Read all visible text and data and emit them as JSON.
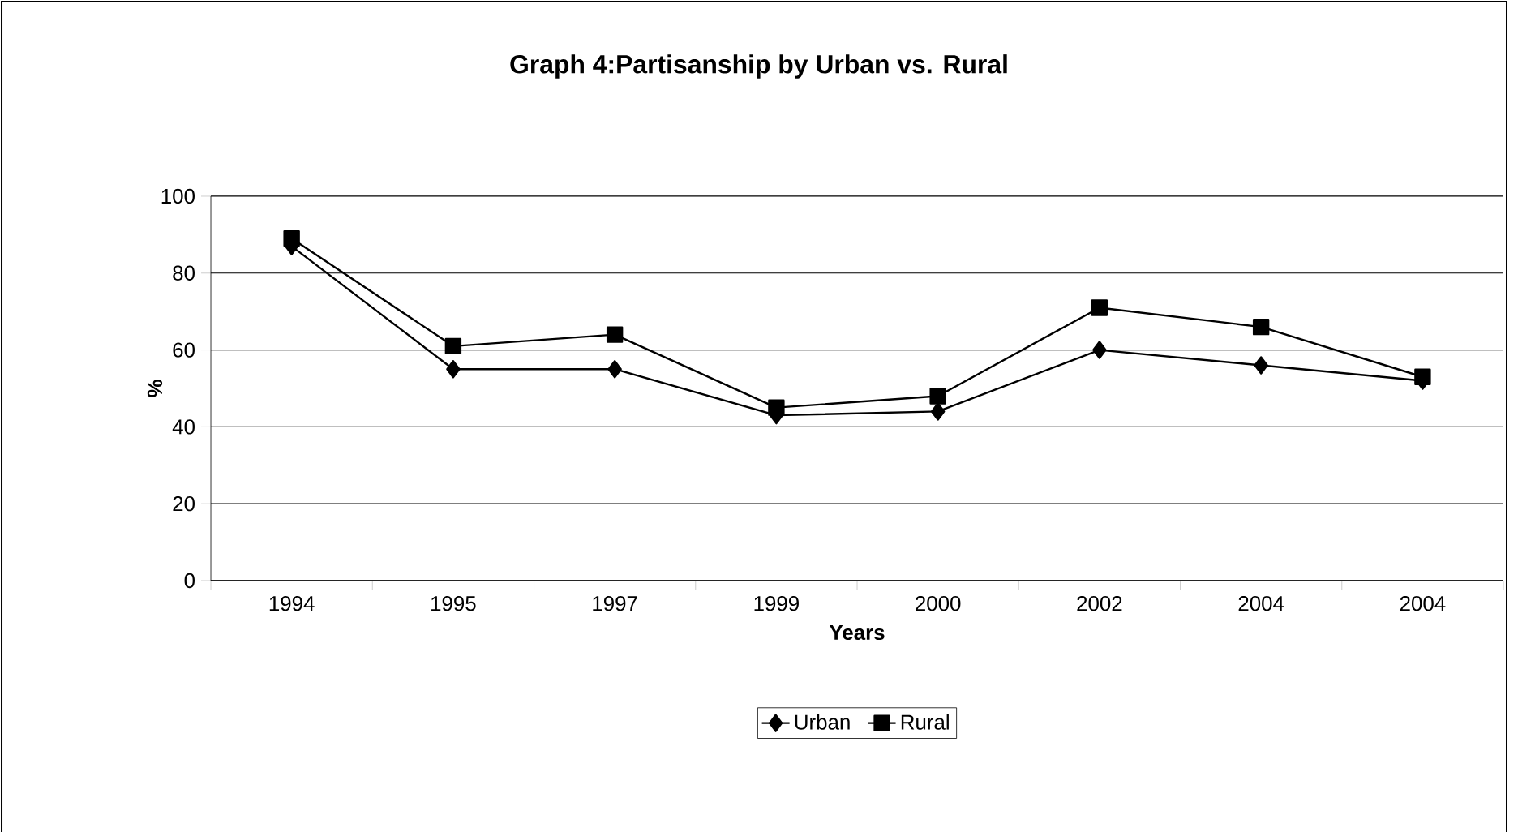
{
  "chart_data": {
    "type": "line",
    "title": "Graph 4:Partisanship by Urban vs. Rural",
    "xlabel": "Years",
    "ylabel": "%",
    "categories": [
      "1994",
      "1995",
      "1997",
      "1999",
      "2000",
      "2002",
      "2004",
      "2004"
    ],
    "series": [
      {
        "name": "Urban",
        "color": "#000000",
        "marker": "diamond",
        "values": [
          87,
          55,
          55,
          43,
          44,
          60,
          56,
          52
        ]
      },
      {
        "name": "Rural",
        "color": "#000000",
        "marker": "square",
        "values": [
          89,
          61,
          64,
          45,
          48,
          71,
          66,
          53
        ]
      }
    ],
    "ylim": [
      0,
      100
    ],
    "yticks": [
      0,
      20,
      40,
      60,
      80,
      100
    ],
    "grid": "y",
    "legend": "bottom",
    "line_style": "solid"
  }
}
